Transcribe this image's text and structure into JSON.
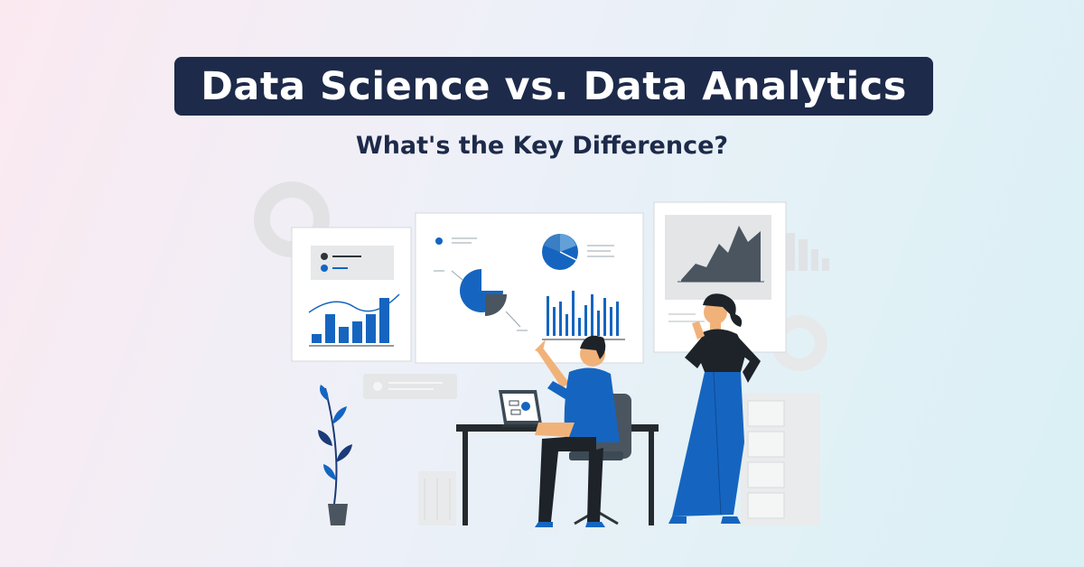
{
  "header": {
    "title": "Data Science vs. Data Analytics",
    "subtitle": "What's the Key Difference?"
  },
  "colors": {
    "title_background": "#1d2a4a",
    "title_text": "#ffffff",
    "subtitle_text": "#1d2a4a",
    "accent_blue": "#1565c0",
    "dark_slate": "#3c4a55"
  },
  "illustration": {
    "icons": [
      "donut-chart-icon",
      "bar-chart-icon",
      "pie-chart-icon",
      "area-chart-icon",
      "laptop-icon",
      "plant-icon",
      "filing-cabinet-icon",
      "trash-bin-icon"
    ]
  }
}
